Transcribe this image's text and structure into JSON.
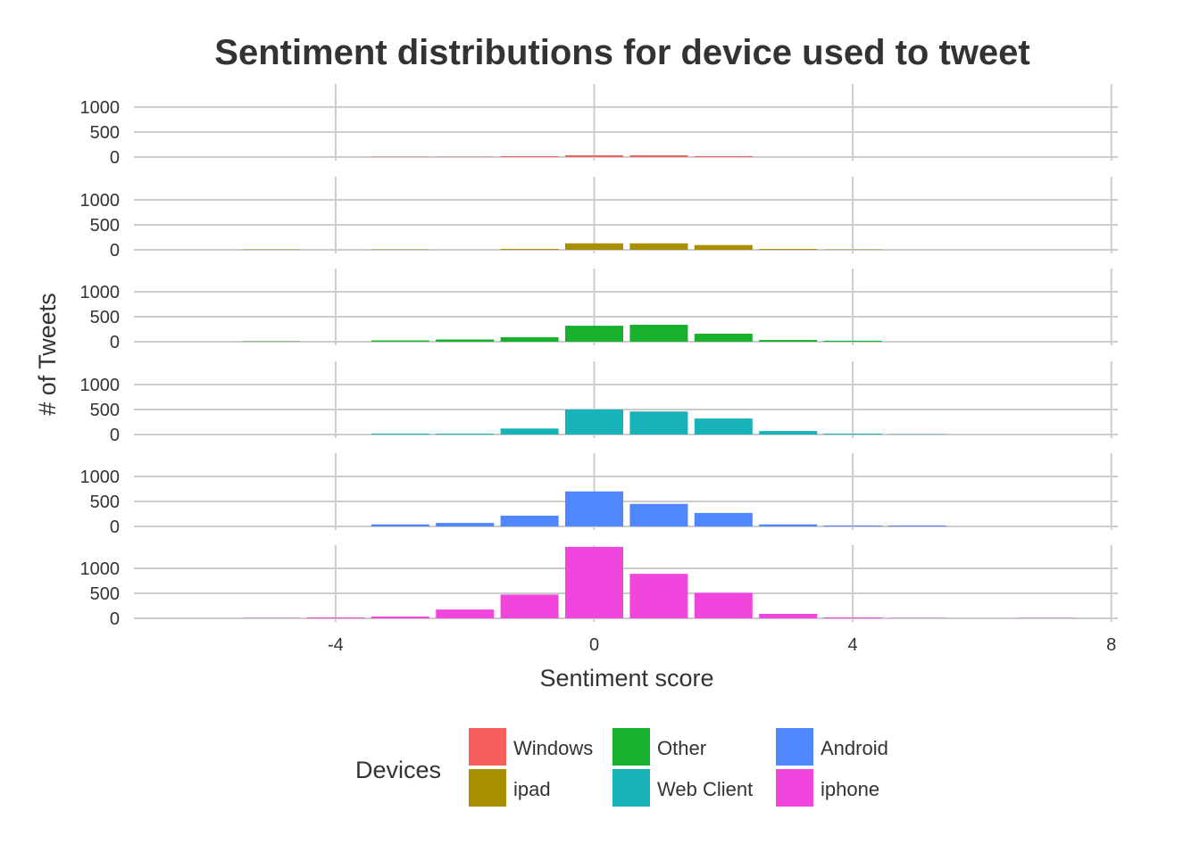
{
  "chart_data": {
    "type": "bar",
    "title": "Sentiment distributions for device used to tweet",
    "xlabel": "Sentiment score",
    "ylabel": "# of Tweets",
    "xlim": [
      -7,
      8.3
    ],
    "ylim": [
      0,
      1500
    ],
    "x_ticks": [
      -4,
      0,
      4,
      8
    ],
    "y_ticks": [
      0,
      500,
      1000
    ],
    "grid": true,
    "legend": {
      "title": "Devices",
      "position": "bottom"
    },
    "facets": "rows",
    "series": [
      {
        "name": "Windows",
        "color": "#F5605C",
        "x": [
          -3,
          -2,
          -1,
          0,
          1,
          2
        ],
        "values": [
          3,
          3,
          12,
          35,
          35,
          12
        ]
      },
      {
        "name": "ipad",
        "color": "#A88F00",
        "x": [
          -5,
          -3,
          -1,
          0,
          1,
          2,
          3,
          4
        ],
        "values": [
          3,
          4,
          18,
          130,
          130,
          95,
          10,
          5
        ]
      },
      {
        "name": "Other",
        "color": "#17B12E",
        "x": [
          -5,
          -3,
          -2,
          -1,
          0,
          1,
          2,
          3,
          4
        ],
        "values": [
          5,
          25,
          45,
          90,
          320,
          340,
          160,
          35,
          20
        ]
      },
      {
        "name": "Web Client",
        "color": "#17B3B8",
        "x": [
          -3,
          -2,
          -1,
          0,
          1,
          2,
          3,
          4,
          5
        ],
        "values": [
          10,
          10,
          120,
          500,
          460,
          320,
          70,
          10,
          3
        ]
      },
      {
        "name": "Android",
        "color": "#5087FF",
        "x": [
          -3,
          -2,
          -1,
          0,
          1,
          2,
          3,
          4,
          5
        ],
        "values": [
          40,
          70,
          215,
          700,
          450,
          270,
          40,
          10,
          10
        ]
      },
      {
        "name": "iphone",
        "color": "#F046DD",
        "x": [
          -5,
          -4,
          -3,
          -2,
          -1,
          0,
          1,
          2,
          3,
          4,
          5,
          7
        ],
        "values": [
          5,
          18,
          35,
          175,
          475,
          1430,
          890,
          510,
          90,
          12,
          6,
          5
        ]
      }
    ]
  }
}
